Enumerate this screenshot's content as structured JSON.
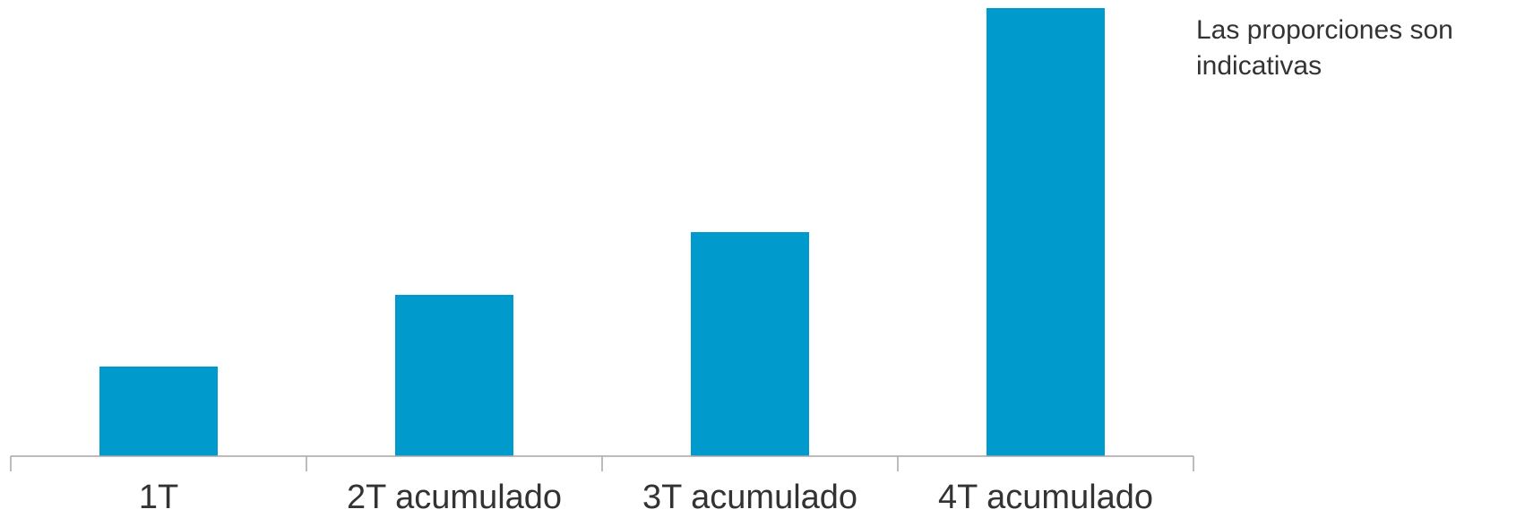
{
  "chart_data": {
    "type": "bar",
    "categories": [
      "1T",
      "2T acumulado",
      "3T acumulado",
      "4T acumulado"
    ],
    "values": [
      20,
      36,
      50,
      100
    ],
    "ylim": [
      0,
      100
    ],
    "grid": false,
    "bar_color": "#009ACD",
    "axis_color": "#A6A6A6",
    "note": "Las proporciones son indicativas"
  }
}
